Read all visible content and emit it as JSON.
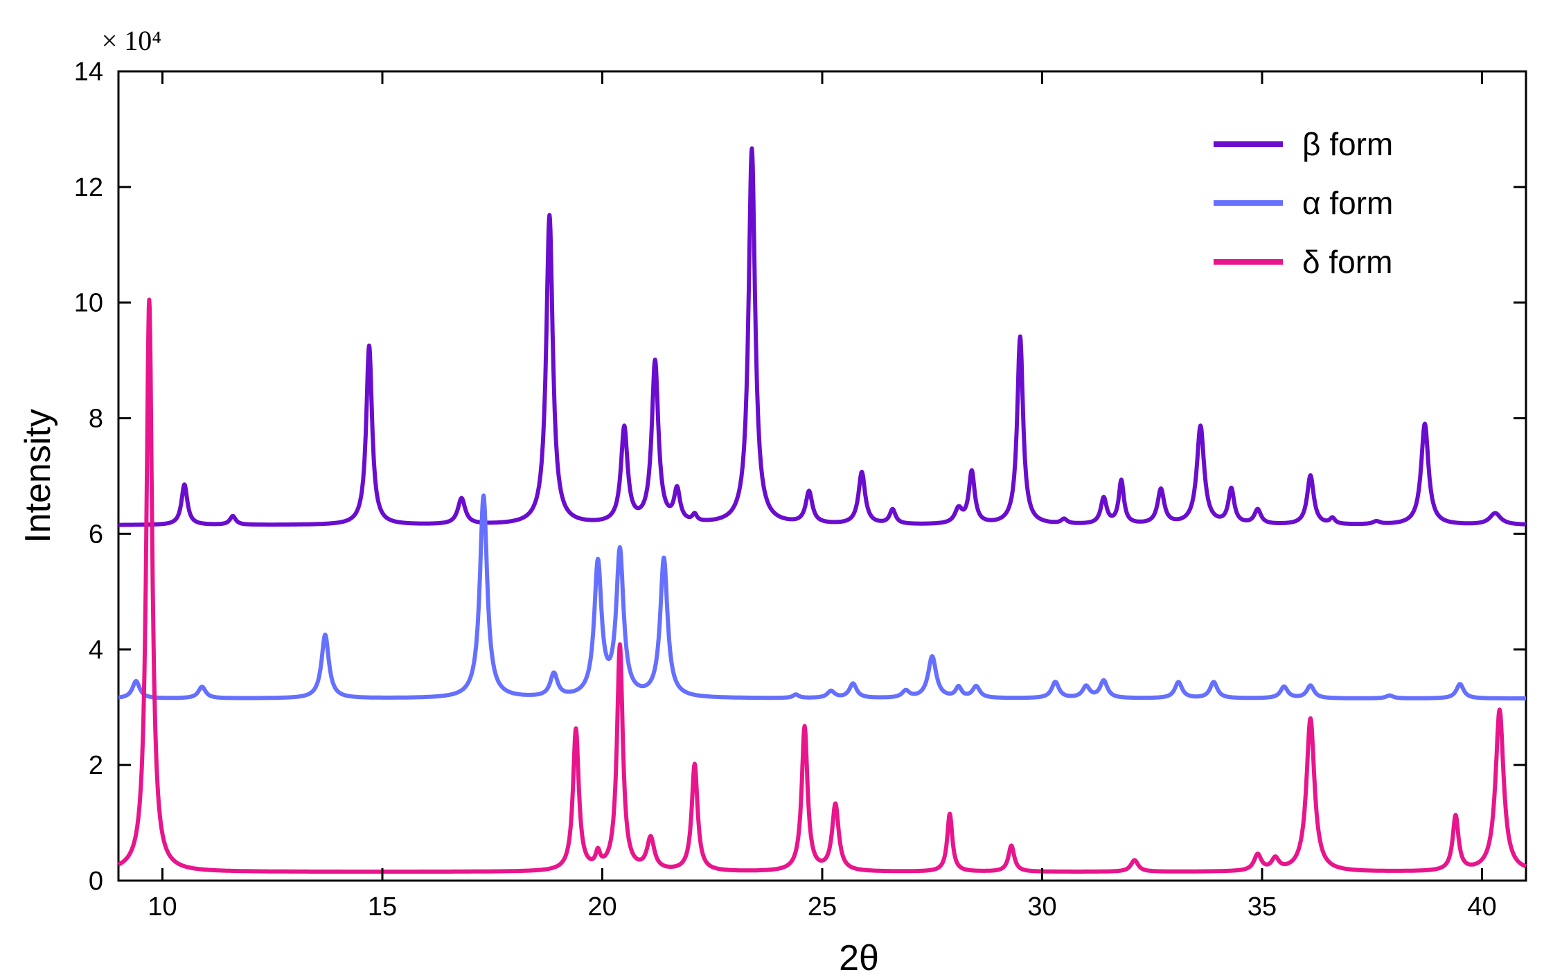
{
  "chart_data": {
    "type": "line",
    "title": "",
    "xlabel": "2θ",
    "ylabel": "Intensity",
    "y_multiplier_label": "× 10⁴",
    "xlim": [
      9,
      41
    ],
    "ylim": [
      0,
      14
    ],
    "x_ticks": [
      10,
      15,
      20,
      25,
      30,
      35,
      40
    ],
    "y_ticks": [
      0,
      2,
      4,
      6,
      8,
      10,
      12,
      14
    ],
    "grid": false,
    "legend_position": "top-right",
    "series": [
      {
        "name": "β form",
        "color": "#6a0dce",
        "baseline": 6.15,
        "peaks": [
          [
            10.5,
            0.7,
            0.08
          ],
          [
            11.6,
            0.15,
            0.08
          ],
          [
            14.7,
            3.1,
            0.08
          ],
          [
            16.8,
            0.45,
            0.1
          ],
          [
            18.8,
            5.35,
            0.09
          ],
          [
            20.5,
            1.65,
            0.09
          ],
          [
            21.2,
            2.8,
            0.09
          ],
          [
            21.7,
            0.55,
            0.08
          ],
          [
            22.1,
            0.12,
            0.06
          ],
          [
            23.4,
            6.5,
            0.09
          ],
          [
            24.7,
            0.55,
            0.09
          ],
          [
            25.9,
            0.9,
            0.09
          ],
          [
            26.6,
            0.25,
            0.08
          ],
          [
            28.1,
            0.25,
            0.1
          ],
          [
            28.4,
            0.9,
            0.08
          ],
          [
            29.5,
            3.25,
            0.08
          ],
          [
            30.5,
            0.08,
            0.08
          ],
          [
            31.4,
            0.45,
            0.08
          ],
          [
            31.8,
            0.75,
            0.07
          ],
          [
            32.7,
            0.6,
            0.09
          ],
          [
            33.6,
            1.7,
            0.1
          ],
          [
            34.3,
            0.6,
            0.08
          ],
          [
            34.9,
            0.25,
            0.09
          ],
          [
            36.1,
            0.85,
            0.09
          ],
          [
            36.6,
            0.1,
            0.07
          ],
          [
            37.6,
            0.05,
            0.1
          ],
          [
            38.7,
            1.75,
            0.1
          ],
          [
            40.3,
            0.2,
            0.15
          ]
        ]
      },
      {
        "name": "α form",
        "color": "#6670ff",
        "baseline": 3.15,
        "peaks": [
          [
            9.4,
            0.3,
            0.1
          ],
          [
            10.9,
            0.2,
            0.1
          ],
          [
            13.7,
            1.1,
            0.1
          ],
          [
            17.3,
            3.5,
            0.1
          ],
          [
            18.9,
            0.4,
            0.1
          ],
          [
            19.9,
            2.3,
            0.1
          ],
          [
            20.4,
            2.5,
            0.1
          ],
          [
            21.4,
            2.4,
            0.1
          ],
          [
            24.4,
            0.06,
            0.08
          ],
          [
            25.2,
            0.12,
            0.1
          ],
          [
            25.7,
            0.25,
            0.1
          ],
          [
            26.9,
            0.12,
            0.1
          ],
          [
            27.5,
            0.72,
            0.11
          ],
          [
            28.1,
            0.18,
            0.08
          ],
          [
            28.5,
            0.2,
            0.1
          ],
          [
            30.3,
            0.28,
            0.1
          ],
          [
            31.0,
            0.2,
            0.1
          ],
          [
            31.4,
            0.3,
            0.1
          ],
          [
            33.1,
            0.28,
            0.1
          ],
          [
            33.9,
            0.28,
            0.1
          ],
          [
            35.5,
            0.2,
            0.1
          ],
          [
            36.1,
            0.22,
            0.1
          ],
          [
            37.9,
            0.05,
            0.1
          ],
          [
            39.5,
            0.25,
            0.1
          ]
        ]
      },
      {
        "name": "δ form",
        "color": "#e8158c",
        "baseline": 0.15,
        "peaks": [
          [
            9.7,
            9.9,
            0.08
          ],
          [
            19.4,
            2.45,
            0.08
          ],
          [
            19.9,
            0.25,
            0.06
          ],
          [
            20.4,
            3.9,
            0.08
          ],
          [
            21.1,
            0.55,
            0.1
          ],
          [
            22.1,
            1.85,
            0.08
          ],
          [
            24.6,
            2.5,
            0.08
          ],
          [
            25.3,
            1.15,
            0.09
          ],
          [
            27.9,
            1.0,
            0.07
          ],
          [
            29.3,
            0.45,
            0.08
          ],
          [
            32.1,
            0.2,
            0.1
          ],
          [
            34.9,
            0.28,
            0.1
          ],
          [
            35.3,
            0.2,
            0.1
          ],
          [
            36.1,
            2.65,
            0.11
          ],
          [
            39.4,
            0.95,
            0.08
          ],
          [
            40.4,
            2.8,
            0.11
          ]
        ]
      }
    ]
  }
}
